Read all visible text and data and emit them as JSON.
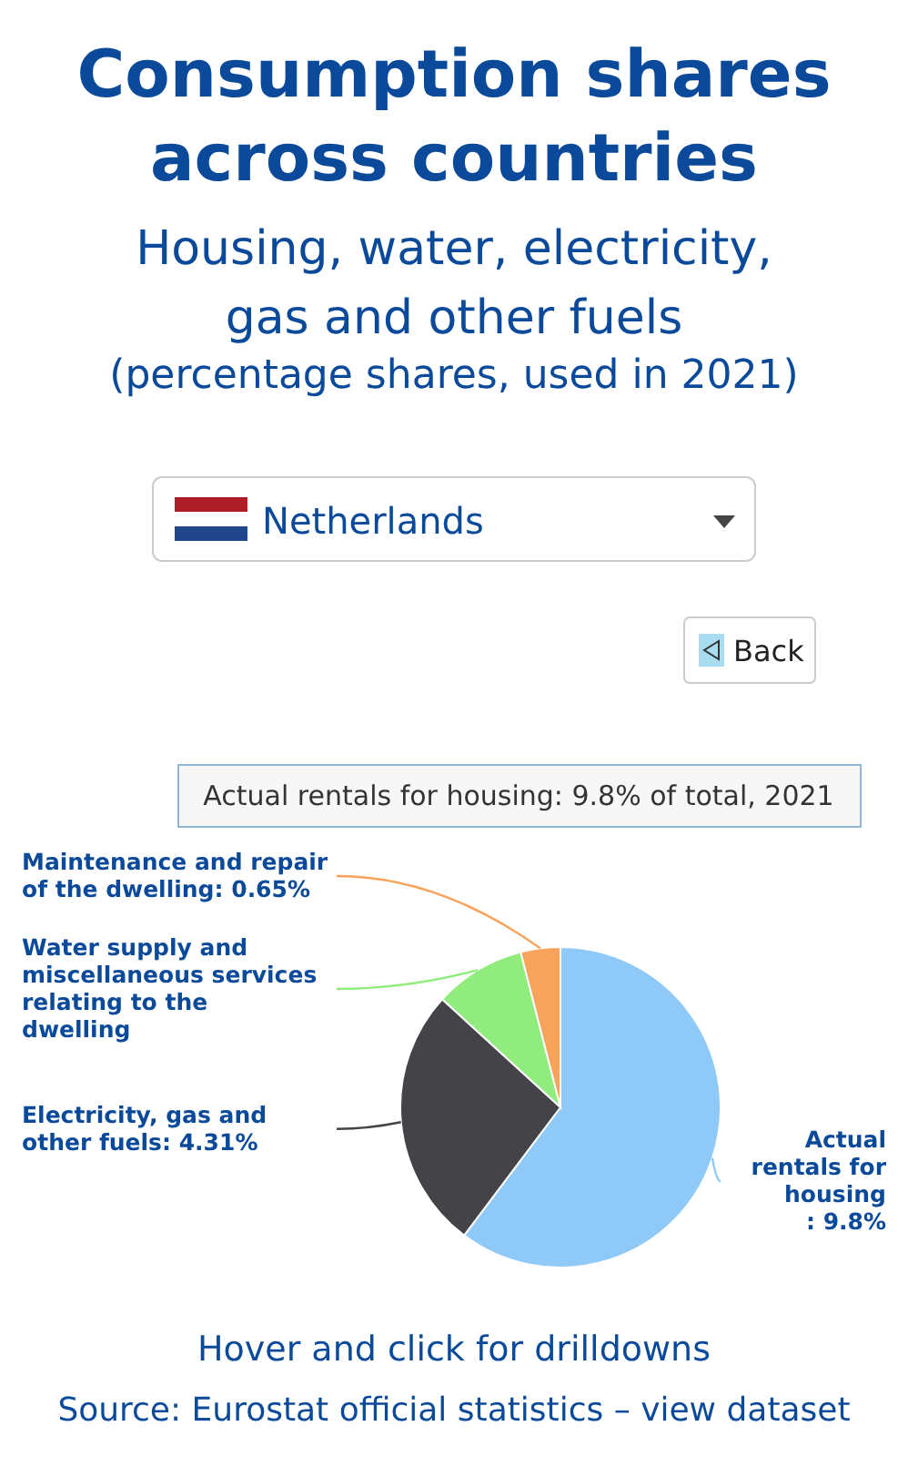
{
  "chart_data": {
    "type": "pie",
    "title": "Consumption shares across countries",
    "subtitle": "Housing, water, electricity, gas and other fuels",
    "categories": [
      "Actual rentals for housing",
      "Electricity, gas and other fuels",
      "Water supply and miscellaneous services relating to the dwelling",
      "Maintenance and repair of the dwelling"
    ],
    "values": [
      9.8,
      4.31,
      1.5,
      0.65
    ],
    "value_labels": [
      ": 9.8%",
      ": 4.31%",
      null,
      ": 0.65%"
    ],
    "colors": [
      "#8ec9f7",
      "#434348",
      "#90ed7d",
      "#f7a35c"
    ],
    "annotations": [
      "(percentage shares, used in 2021)",
      "Netherlands",
      "Back",
      "Actual rentals for housing: 9.8% of total, 2021",
      "Hover and click for drilldowns",
      "Source: Eurostat official statistics – view dataset"
    ],
    "legend": false
  }
}
